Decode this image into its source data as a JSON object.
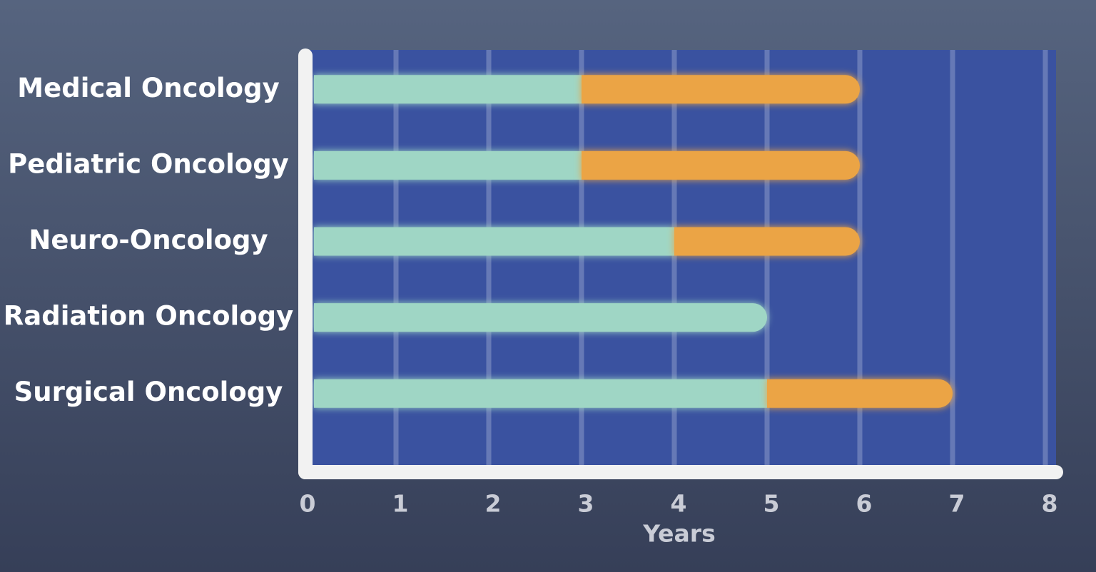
{
  "chart_data": {
    "type": "stacked-bar-horizontal",
    "categories": [
      "Medical Oncology",
      "Pediatric Oncology",
      "Neuro-Oncology",
      "Radiation Oncology",
      "Surgical Oncology"
    ],
    "series": [
      {
        "color": "#9fd6c5",
        "values": [
          3,
          3,
          4,
          5,
          5
        ]
      },
      {
        "color": "#eba444",
        "values": [
          3,
          3,
          2,
          null,
          2
        ]
      }
    ],
    "xlim": [
      0,
      8
    ],
    "xticks": [
      0,
      1,
      2,
      3,
      4,
      5,
      6,
      7,
      8
    ],
    "x_label": "Years",
    "grid": true
  }
}
